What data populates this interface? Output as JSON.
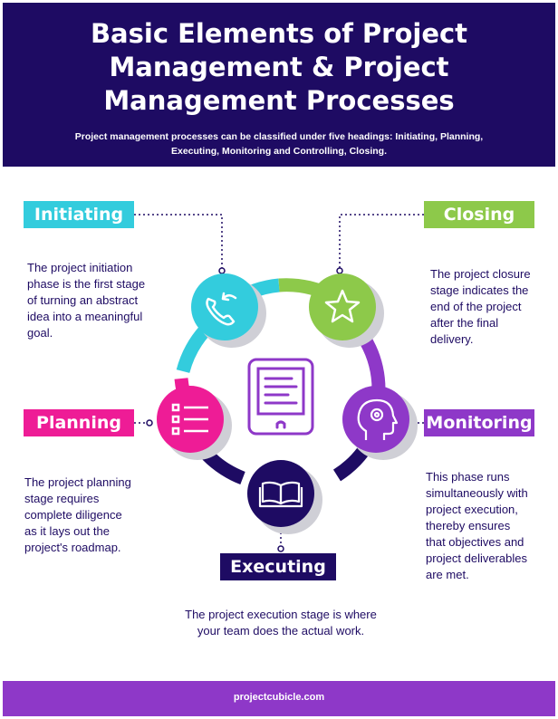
{
  "header": {
    "title_line1": "Basic Elements of Project",
    "title_line2": "Management & Project",
    "title_line3": "Management Processes",
    "subtitle_line1": "Project management processes can be classified under five headings: Initiating, Planning,",
    "subtitle_line2": "Executing, Monitoring and Controlling, Closing."
  },
  "stages": {
    "initiating": {
      "label": "Initiating",
      "color": "#33ccdd",
      "icon": "phone-icon",
      "desc_lines": [
        "The project initiation",
        "phase is the first stage",
        "of turning an abstract",
        "idea into a meaningful",
        "goal."
      ]
    },
    "closing": {
      "label": "Closing",
      "color": "#8dc94a",
      "icon": "star-icon",
      "desc_lines": [
        "The project closure",
        "stage indicates the",
        "end of the project",
        "after the final",
        "delivery."
      ]
    },
    "planning": {
      "label": "Planning",
      "color": "#ee1c96",
      "icon": "checklist-icon",
      "desc_lines": [
        "The project planning",
        "stage requires",
        "complete diligence",
        "as it lays out the",
        "project's roadmap."
      ]
    },
    "monitoring": {
      "label": "Monitoring",
      "color": "#8e38c8",
      "icon": "head-gear-icon",
      "desc_lines": [
        "This phase runs",
        "simultaneously with",
        "project execution,",
        "thereby ensures",
        "that objectives and",
        "project deliverables",
        "are met."
      ]
    },
    "executing": {
      "label": "Executing",
      "color": "#1e0b63",
      "icon": "book-icon",
      "desc_lines": [
        "The project execution stage is where",
        "your team does the actual work."
      ]
    }
  },
  "center": {
    "icon": "tablet-document-icon",
    "color": "#8e38c8"
  },
  "footer": {
    "text": "projectcubicle.com"
  }
}
